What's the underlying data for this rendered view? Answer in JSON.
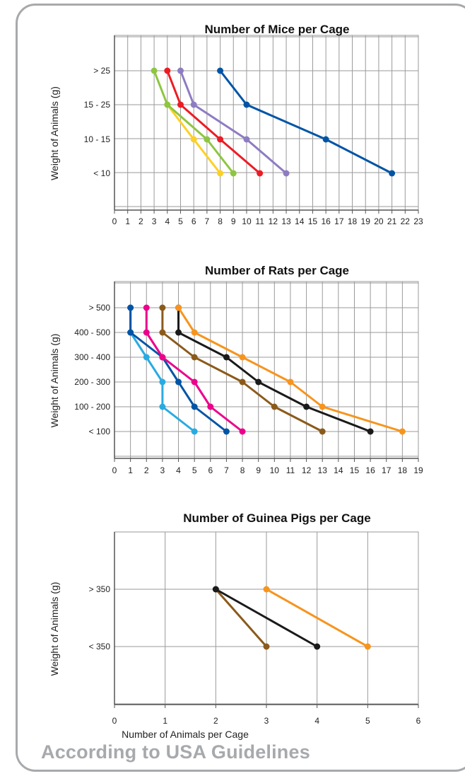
{
  "footer": {
    "text": "According to USA Guidelines"
  },
  "chart_data": [
    {
      "type": "line",
      "title": "Number of Mice per Cage",
      "ylabel": "Weight of Animals (g)",
      "xlabel": "",
      "categories": [
        "< 10",
        "10 - 15",
        "15 - 25",
        "> 25"
      ],
      "xlim": [
        0,
        23
      ],
      "xticks": [
        0,
        1,
        2,
        3,
        4,
        5,
        6,
        7,
        8,
        9,
        10,
        11,
        12,
        13,
        14,
        15,
        16,
        17,
        18,
        19,
        20,
        21,
        22,
        23
      ],
      "grid": true,
      "series": [
        {
          "color": "#fdd023",
          "points": [
            {
              "y": "< 10",
              "x": 8
            },
            {
              "y": "10 - 15",
              "x": 6
            },
            {
              "y": "15 - 25",
              "x": 4
            }
          ]
        },
        {
          "color": "#8dc63f",
          "points": [
            {
              "y": "< 10",
              "x": 9
            },
            {
              "y": "10 - 15",
              "x": 7
            },
            {
              "y": "15 - 25",
              "x": 4
            },
            {
              "y": "> 25",
              "x": 3
            }
          ]
        },
        {
          "color": "#ed1c24",
          "points": [
            {
              "y": "< 10",
              "x": 11
            },
            {
              "y": "10 - 15",
              "x": 8
            },
            {
              "y": "15 - 25",
              "x": 5
            },
            {
              "y": "> 25",
              "x": 4
            }
          ]
        },
        {
          "color": "#8e7cc3",
          "points": [
            {
              "y": "< 10",
              "x": 13
            },
            {
              "y": "10 - 15",
              "x": 10
            },
            {
              "y": "15 - 25",
              "x": 6
            },
            {
              "y": "> 25",
              "x": 5
            }
          ]
        },
        {
          "color": "#0054a6",
          "points": [
            {
              "y": "< 10",
              "x": 21
            },
            {
              "y": "10 - 15",
              "x": 16
            },
            {
              "y": "15 - 25",
              "x": 10
            },
            {
              "y": "> 25",
              "x": 8
            }
          ]
        }
      ]
    },
    {
      "type": "line",
      "title": "Number of Rats per Cage",
      "ylabel": "Weight of Animals (g)",
      "xlabel": "",
      "categories": [
        "< 100",
        "100 - 200",
        "200 - 300",
        "300 - 400",
        "400 - 500",
        "> 500"
      ],
      "xlim": [
        0,
        19
      ],
      "xticks": [
        0,
        1,
        2,
        3,
        4,
        5,
        6,
        7,
        8,
        9,
        10,
        11,
        12,
        13,
        14,
        15,
        16,
        17,
        18,
        19
      ],
      "grid": true,
      "series": [
        {
          "color": "#29abe2",
          "points": [
            {
              "y": "< 100",
              "x": 5
            },
            {
              "y": "100 - 200",
              "x": 3
            },
            {
              "y": "200 - 300",
              "x": 3
            },
            {
              "y": "300 - 400",
              "x": 2
            },
            {
              "y": "400 - 500",
              "x": 1
            },
            {
              "y": "> 500",
              "x": 1
            }
          ]
        },
        {
          "color": "#0054a6",
          "points": [
            {
              "y": "< 100",
              "x": 7
            },
            {
              "y": "100 - 200",
              "x": 5
            },
            {
              "y": "200 - 300",
              "x": 4
            },
            {
              "y": "300 - 400",
              "x": 3
            },
            {
              "y": "400 - 500",
              "x": 1
            },
            {
              "y": "> 500",
              "x": 1
            }
          ]
        },
        {
          "color": "#ec008c",
          "points": [
            {
              "y": "< 100",
              "x": 8
            },
            {
              "y": "100 - 200",
              "x": 6
            },
            {
              "y": "200 - 300",
              "x": 5
            },
            {
              "y": "300 - 400",
              "x": 3
            },
            {
              "y": "400 - 500",
              "x": 2
            },
            {
              "y": "> 500",
              "x": 2
            }
          ]
        },
        {
          "color": "#8b5a1b",
          "points": [
            {
              "y": "< 100",
              "x": 13
            },
            {
              "y": "100 - 200",
              "x": 10
            },
            {
              "y": "200 - 300",
              "x": 8
            },
            {
              "y": "300 - 400",
              "x": 5
            },
            {
              "y": "400 - 500",
              "x": 3
            },
            {
              "y": "> 500",
              "x": 3
            }
          ]
        },
        {
          "color": "#1a1a1a",
          "points": [
            {
              "y": "< 100",
              "x": 16
            },
            {
              "y": "100 - 200",
              "x": 12
            },
            {
              "y": "200 - 300",
              "x": 9
            },
            {
              "y": "300 - 400",
              "x": 7
            },
            {
              "y": "400 - 500",
              "x": 4
            },
            {
              "y": "> 500",
              "x": 4
            }
          ]
        },
        {
          "color": "#f7941d",
          "points": [
            {
              "y": "< 100",
              "x": 18
            },
            {
              "y": "100 - 200",
              "x": 13
            },
            {
              "y": "200 - 300",
              "x": 11
            },
            {
              "y": "300 - 400",
              "x": 8
            },
            {
              "y": "400 - 500",
              "x": 5
            },
            {
              "y": "> 500",
              "x": 4
            }
          ]
        }
      ]
    },
    {
      "type": "line",
      "title": "Number of Guinea Pigs per Cage",
      "ylabel": "Weight of Animals (g)",
      "xlabel": "Number of Animals per Cage",
      "categories": [
        "< 350",
        "> 350"
      ],
      "xlim": [
        0,
        6
      ],
      "xticks": [
        0,
        1,
        2,
        3,
        4,
        5,
        6
      ],
      "grid": true,
      "series": [
        {
          "color": "#8b5a1b",
          "points": [
            {
              "y": "< 350",
              "x": 3
            },
            {
              "y": "> 350",
              "x": 2
            }
          ]
        },
        {
          "color": "#1a1a1a",
          "points": [
            {
              "y": "< 350",
              "x": 4
            },
            {
              "y": "> 350",
              "x": 2
            }
          ]
        },
        {
          "color": "#f7941d",
          "points": [
            {
              "y": "< 350",
              "x": 5
            },
            {
              "y": "> 350",
              "x": 3
            }
          ]
        }
      ]
    }
  ]
}
